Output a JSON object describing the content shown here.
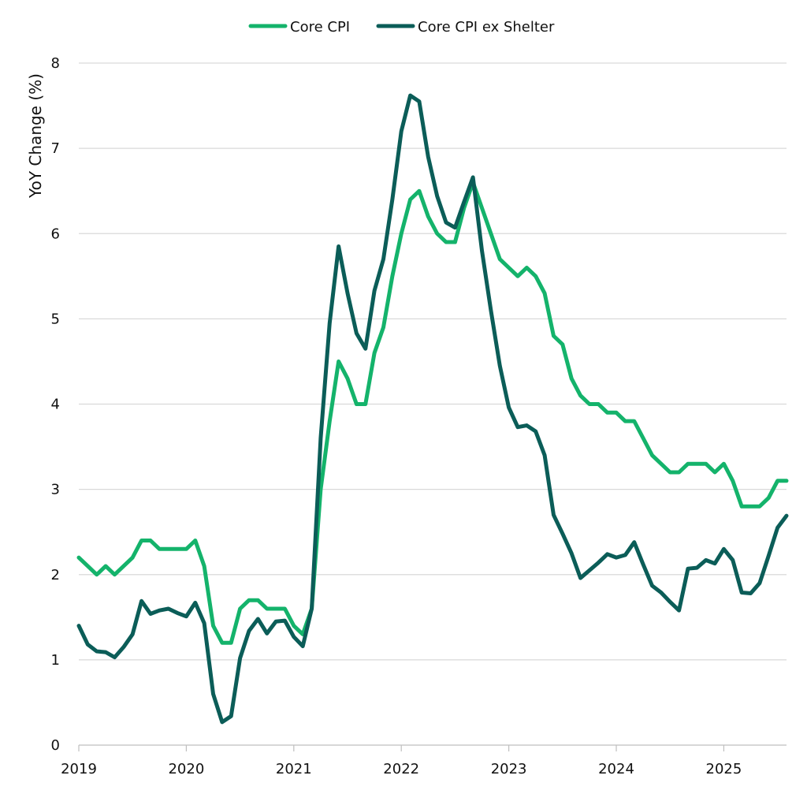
{
  "chart_data": {
    "type": "line",
    "title": "",
    "xlabel": "",
    "ylabel": "YoY Change (%)",
    "ylim": [
      0,
      8
    ],
    "yticks": [
      0,
      1,
      2,
      3,
      4,
      5,
      6,
      7,
      8
    ],
    "xlim": [
      "2019-01",
      "2025-08"
    ],
    "xticks": [
      {
        "label": "2019",
        "date": "2019-01"
      },
      {
        "label": "2020",
        "date": "2020-01"
      },
      {
        "label": "2021",
        "date": "2021-01"
      },
      {
        "label": "2022",
        "date": "2022-01"
      },
      {
        "label": "2023",
        "date": "2023-01"
      },
      {
        "label": "2024",
        "date": "2024-01"
      },
      {
        "label": "2025",
        "date": "2025-01"
      }
    ],
    "grid": "horizontal",
    "legend_position": "top-center",
    "x": [
      "2019-01",
      "2019-02",
      "2019-03",
      "2019-04",
      "2019-05",
      "2019-06",
      "2019-07",
      "2019-08",
      "2019-09",
      "2019-10",
      "2019-11",
      "2019-12",
      "2020-01",
      "2020-02",
      "2020-03",
      "2020-04",
      "2020-05",
      "2020-06",
      "2020-07",
      "2020-08",
      "2020-09",
      "2020-10",
      "2020-11",
      "2020-12",
      "2021-01",
      "2021-02",
      "2021-03",
      "2021-04",
      "2021-05",
      "2021-06",
      "2021-07",
      "2021-08",
      "2021-09",
      "2021-10",
      "2021-11",
      "2021-12",
      "2022-01",
      "2022-02",
      "2022-03",
      "2022-04",
      "2022-05",
      "2022-06",
      "2022-07",
      "2022-08",
      "2022-09",
      "2022-10",
      "2022-11",
      "2022-12",
      "2023-01",
      "2023-02",
      "2023-03",
      "2023-04",
      "2023-05",
      "2023-06",
      "2023-07",
      "2023-08",
      "2023-09",
      "2023-10",
      "2023-11",
      "2023-12",
      "2024-01",
      "2024-02",
      "2024-03",
      "2024-04",
      "2024-05",
      "2024-06",
      "2024-07",
      "2024-08",
      "2024-09",
      "2024-10",
      "2024-11",
      "2024-12",
      "2025-01",
      "2025-02",
      "2025-03",
      "2025-04",
      "2025-05",
      "2025-06",
      "2025-07",
      "2025-08"
    ],
    "series": [
      {
        "name": "Core CPI",
        "color": "#14b36b",
        "values": [
          2.2,
          2.1,
          2.0,
          2.1,
          2.0,
          2.1,
          2.2,
          2.4,
          2.4,
          2.3,
          2.3,
          2.3,
          2.3,
          2.4,
          2.1,
          1.4,
          1.2,
          1.2,
          1.6,
          1.7,
          1.7,
          1.6,
          1.6,
          1.6,
          1.4,
          1.3,
          1.6,
          3.0,
          3.8,
          4.5,
          4.3,
          4.0,
          4.0,
          4.6,
          4.9,
          5.5,
          6.0,
          6.4,
          6.5,
          6.2,
          6.0,
          5.9,
          5.9,
          6.3,
          6.6,
          6.3,
          6.0,
          5.7,
          5.6,
          5.5,
          5.6,
          5.5,
          5.3,
          4.8,
          4.7,
          4.3,
          4.1,
          4.0,
          4.0,
          3.9,
          3.9,
          3.8,
          3.8,
          3.6,
          3.4,
          3.3,
          3.2,
          3.2,
          3.3,
          3.3,
          3.3,
          3.2,
          3.3,
          3.1,
          2.8,
          2.8,
          2.8,
          2.9,
          3.1,
          3.1
        ]
      },
      {
        "name": "Core CPI ex Shelter",
        "color": "#0b5d58",
        "values": [
          1.4,
          1.18,
          1.1,
          1.09,
          1.03,
          1.15,
          1.3,
          1.69,
          1.54,
          1.58,
          1.6,
          1.55,
          1.51,
          1.67,
          1.43,
          0.6,
          0.27,
          0.34,
          1.02,
          1.34,
          1.48,
          1.31,
          1.45,
          1.46,
          1.27,
          1.16,
          1.6,
          3.6,
          4.95,
          5.85,
          5.3,
          4.83,
          4.65,
          5.33,
          5.7,
          6.4,
          7.2,
          7.62,
          7.55,
          6.9,
          6.44,
          6.13,
          6.07,
          6.37,
          6.66,
          5.8,
          5.1,
          4.45,
          3.96,
          3.73,
          3.75,
          3.68,
          3.4,
          2.7,
          2.48,
          2.25,
          1.96,
          2.05,
          2.14,
          2.24,
          2.2,
          2.23,
          2.38,
          2.12,
          1.87,
          1.79,
          1.68,
          1.58,
          2.07,
          2.08,
          2.17,
          2.13,
          2.3,
          2.17,
          1.79,
          1.78,
          1.9,
          2.22,
          2.55,
          2.69
        ]
      }
    ]
  }
}
